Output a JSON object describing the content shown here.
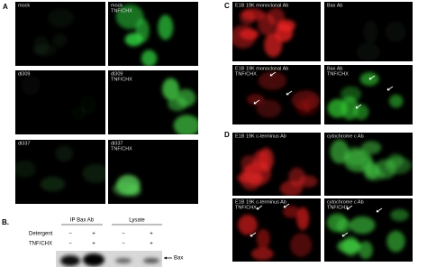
{
  "panel_a": {
    "label": "A",
    "images": [
      {
        "lines": [
          "mock"
        ]
      },
      {
        "lines": [
          "mock",
          "TNF/CHX"
        ]
      },
      {
        "lines": [
          "dl309"
        ]
      },
      {
        "lines": [
          "dl309",
          "TNF/CHX"
        ]
      },
      {
        "lines": [
          "dl337"
        ]
      },
      {
        "lines": [
          "dl337",
          "TNF/CHX"
        ]
      }
    ]
  },
  "panel_b": {
    "label": "B.",
    "groups": [
      "IP Bax Ab",
      "Lysate"
    ],
    "rows": [
      {
        "name": "Detergent",
        "signs": [
          "−",
          "+",
          "−",
          "+"
        ]
      },
      {
        "name": "TNF/CHX",
        "signs": [
          "−",
          "+",
          "−",
          "+"
        ]
      }
    ],
    "band": "Bax"
  },
  "panel_c": {
    "label": "C",
    "images": [
      {
        "lines": [
          "E1B 19K monoclonal Ab"
        ]
      },
      {
        "lines": [
          "Bax Ab"
        ]
      },
      {
        "lines": [
          "E1B 19K monoclonal Ab",
          "TNF/CHX"
        ]
      },
      {
        "lines": [
          "Bax Ab",
          "TNF/CHX"
        ]
      }
    ]
  },
  "panel_d": {
    "label": "D",
    "images": [
      {
        "lines": [
          "E1B 19K c-terminus Ab"
        ]
      },
      {
        "lines": [
          "cytochrome c Ab"
        ]
      },
      {
        "lines": [
          "E1B 19K c-terminus Ab",
          "TNF/CHX"
        ]
      },
      {
        "lines": [
          "cytochrome c Ab",
          "TNF/CHX"
        ]
      }
    ]
  }
}
